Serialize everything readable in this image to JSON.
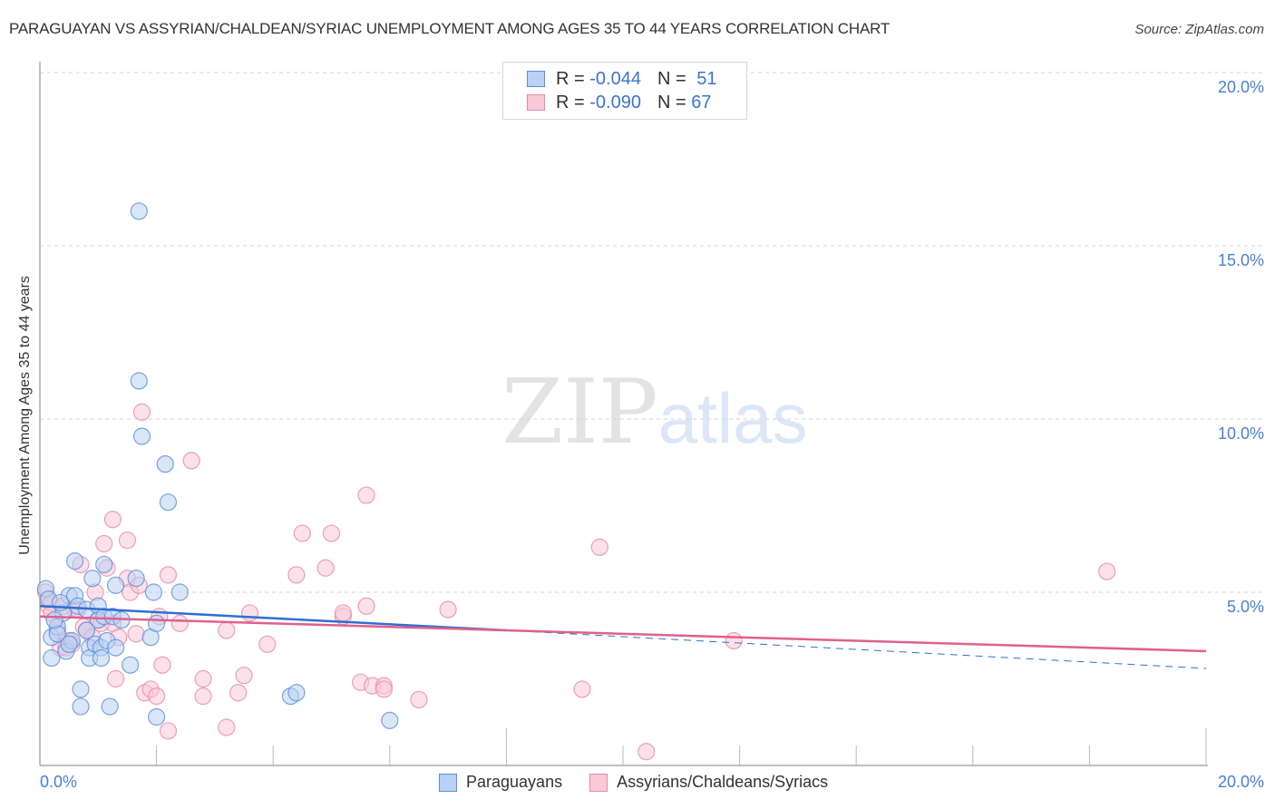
{
  "header": {
    "title": "PARAGUAYAN VS ASSYRIAN/CHALDEAN/SYRIAC UNEMPLOYMENT AMONG AGES 35 TO 44 YEARS CORRELATION CHART",
    "source": "Source: ZipAtlas.com"
  },
  "watermark": {
    "zip": "ZIP",
    "atlas": "atlas"
  },
  "axes": {
    "ylabel": "Unemployment Among Ages 35 to 44 years",
    "y_ticks": [
      "20.0%",
      "15.0%",
      "10.0%",
      "5.0%"
    ],
    "x_ticks": [
      "0.0%",
      "20.0%"
    ]
  },
  "legend_top": {
    "rows": [
      {
        "r_label": "R =",
        "r_value": "-0.044",
        "n_label": "N =",
        "n_value": "51"
      },
      {
        "r_label": "R =",
        "r_value": "-0.090",
        "n_label": "N =",
        "n_value": "67"
      }
    ]
  },
  "legend_bottom": {
    "items": [
      {
        "label": "Paraguayans"
      },
      {
        "label": "Assyrians/Chaldeans/Syriacs"
      }
    ]
  },
  "colors": {
    "paraguayans_fill": "#b9d1f3",
    "paraguayans_stroke": "#5a8fdc",
    "paraguayans_line": "#2f6fd0",
    "assyrians_fill": "#f9c9d8",
    "assyrians_stroke": "#e68aa8",
    "assyrians_line": "#e0608c",
    "tick_label": "#4a7fd4"
  },
  "chart_data": {
    "type": "scatter",
    "title": "PARAGUAYAN VS ASSYRIAN/CHALDEAN/SYRIAC UNEMPLOYMENT AMONG AGES 35 TO 44 YEARS CORRELATION CHART",
    "xlabel": "",
    "ylabel": "Unemployment Among Ages 35 to 44 years",
    "xlim": [
      0,
      20
    ],
    "ylim": [
      0,
      20
    ],
    "x_tick_labels": [
      "0.0%",
      "20.0%"
    ],
    "y_tick_labels": [
      "5.0%",
      "10.0%",
      "15.0%",
      "20.0%"
    ],
    "grid": "horizontal dashed",
    "legend_position": "top-center (stats) and bottom (series)",
    "series": [
      {
        "name": "Paraguayans",
        "R": -0.044,
        "N": 51,
        "trend": {
          "x0": 0,
          "y0": 4.6,
          "x1": 8.0,
          "y1": 3.9,
          "dashed_extension_to": {
            "x": 20,
            "y": 2.8
          }
        },
        "points": [
          [
            0.1,
            5.1
          ],
          [
            0.15,
            4.8
          ],
          [
            0.2,
            3.7
          ],
          [
            0.2,
            3.1
          ],
          [
            0.3,
            4.0
          ],
          [
            0.3,
            3.8
          ],
          [
            0.4,
            4.4
          ],
          [
            0.45,
            3.3
          ],
          [
            0.5,
            4.9
          ],
          [
            0.55,
            3.6
          ],
          [
            0.6,
            5.9
          ],
          [
            0.6,
            4.9
          ],
          [
            0.65,
            4.6
          ],
          [
            0.7,
            2.2
          ],
          [
            0.7,
            1.7
          ],
          [
            0.8,
            4.5
          ],
          [
            0.85,
            3.4
          ],
          [
            0.85,
            3.1
          ],
          [
            0.9,
            5.4
          ],
          [
            0.95,
            3.5
          ],
          [
            1.0,
            4.6
          ],
          [
            1.0,
            4.2
          ],
          [
            1.05,
            3.4
          ],
          [
            1.05,
            3.1
          ],
          [
            1.1,
            5.8
          ],
          [
            1.1,
            4.3
          ],
          [
            1.15,
            3.6
          ],
          [
            1.2,
            1.7
          ],
          [
            1.25,
            4.3
          ],
          [
            1.3,
            5.2
          ],
          [
            1.55,
            2.9
          ],
          [
            1.65,
            5.4
          ],
          [
            1.7,
            16.0
          ],
          [
            1.7,
            11.1
          ],
          [
            1.75,
            9.5
          ],
          [
            1.9,
            3.7
          ],
          [
            2.0,
            4.1
          ],
          [
            2.0,
            1.4
          ],
          [
            2.15,
            8.7
          ],
          [
            2.2,
            7.6
          ],
          [
            2.4,
            5.0
          ],
          [
            1.95,
            5.0
          ],
          [
            4.3,
            2.0
          ],
          [
            4.4,
            2.1
          ],
          [
            6.0,
            1.3
          ],
          [
            0.35,
            4.7
          ],
          [
            0.5,
            3.5
          ],
          [
            1.4,
            4.2
          ],
          [
            0.25,
            4.2
          ],
          [
            0.8,
            3.9
          ],
          [
            1.3,
            3.4
          ]
        ]
      },
      {
        "name": "Assyrians/Chaldeans/Syriacs",
        "R": -0.09,
        "N": 67,
        "trend": {
          "x0": 0,
          "y0": 4.3,
          "x1": 20,
          "y1": 3.3
        },
        "points": [
          [
            0.1,
            5.0
          ],
          [
            0.15,
            4.6
          ],
          [
            0.2,
            4.7
          ],
          [
            0.3,
            3.9
          ],
          [
            0.35,
            3.4
          ],
          [
            0.4,
            4.6
          ],
          [
            0.5,
            3.6
          ],
          [
            0.55,
            3.5
          ],
          [
            0.7,
            5.8
          ],
          [
            0.75,
            4.0
          ],
          [
            0.8,
            3.9
          ],
          [
            0.9,
            3.7
          ],
          [
            0.95,
            5.0
          ],
          [
            1.0,
            4.2
          ],
          [
            1.1,
            6.4
          ],
          [
            1.15,
            5.7
          ],
          [
            1.25,
            7.1
          ],
          [
            1.25,
            4.1
          ],
          [
            1.3,
            2.5
          ],
          [
            1.35,
            3.7
          ],
          [
            1.5,
            6.5
          ],
          [
            1.5,
            5.4
          ],
          [
            1.55,
            5.0
          ],
          [
            1.65,
            3.8
          ],
          [
            1.7,
            5.2
          ],
          [
            1.75,
            10.2
          ],
          [
            1.8,
            2.1
          ],
          [
            1.9,
            2.2
          ],
          [
            2.0,
            2.0
          ],
          [
            2.05,
            4.3
          ],
          [
            2.1,
            2.9
          ],
          [
            2.2,
            5.5
          ],
          [
            2.2,
            1.0
          ],
          [
            2.4,
            4.1
          ],
          [
            2.6,
            8.8
          ],
          [
            2.8,
            2.5
          ],
          [
            2.8,
            2.0
          ],
          [
            3.2,
            3.9
          ],
          [
            3.2,
            1.1
          ],
          [
            3.4,
            2.1
          ],
          [
            3.5,
            2.6
          ],
          [
            3.6,
            4.4
          ],
          [
            3.9,
            3.5
          ],
          [
            4.4,
            5.5
          ],
          [
            4.5,
            6.7
          ],
          [
            5.0,
            6.7
          ],
          [
            4.9,
            5.7
          ],
          [
            5.2,
            4.3
          ],
          [
            5.2,
            4.4
          ],
          [
            5.5,
            2.4
          ],
          [
            5.6,
            4.6
          ],
          [
            5.6,
            7.8
          ],
          [
            5.7,
            2.3
          ],
          [
            5.9,
            2.3
          ],
          [
            5.9,
            2.2
          ],
          [
            6.5,
            1.9
          ],
          [
            7.0,
            4.5
          ],
          [
            9.3,
            2.2
          ],
          [
            9.6,
            6.3
          ],
          [
            10.4,
            0.4
          ],
          [
            11.9,
            3.6
          ],
          [
            18.3,
            5.6
          ],
          [
            0.6,
            4.5
          ],
          [
            0.2,
            4.4
          ],
          [
            1.05,
            4.1
          ],
          [
            0.45,
            3.4
          ],
          [
            0.65,
            4.5
          ]
        ]
      }
    ]
  }
}
